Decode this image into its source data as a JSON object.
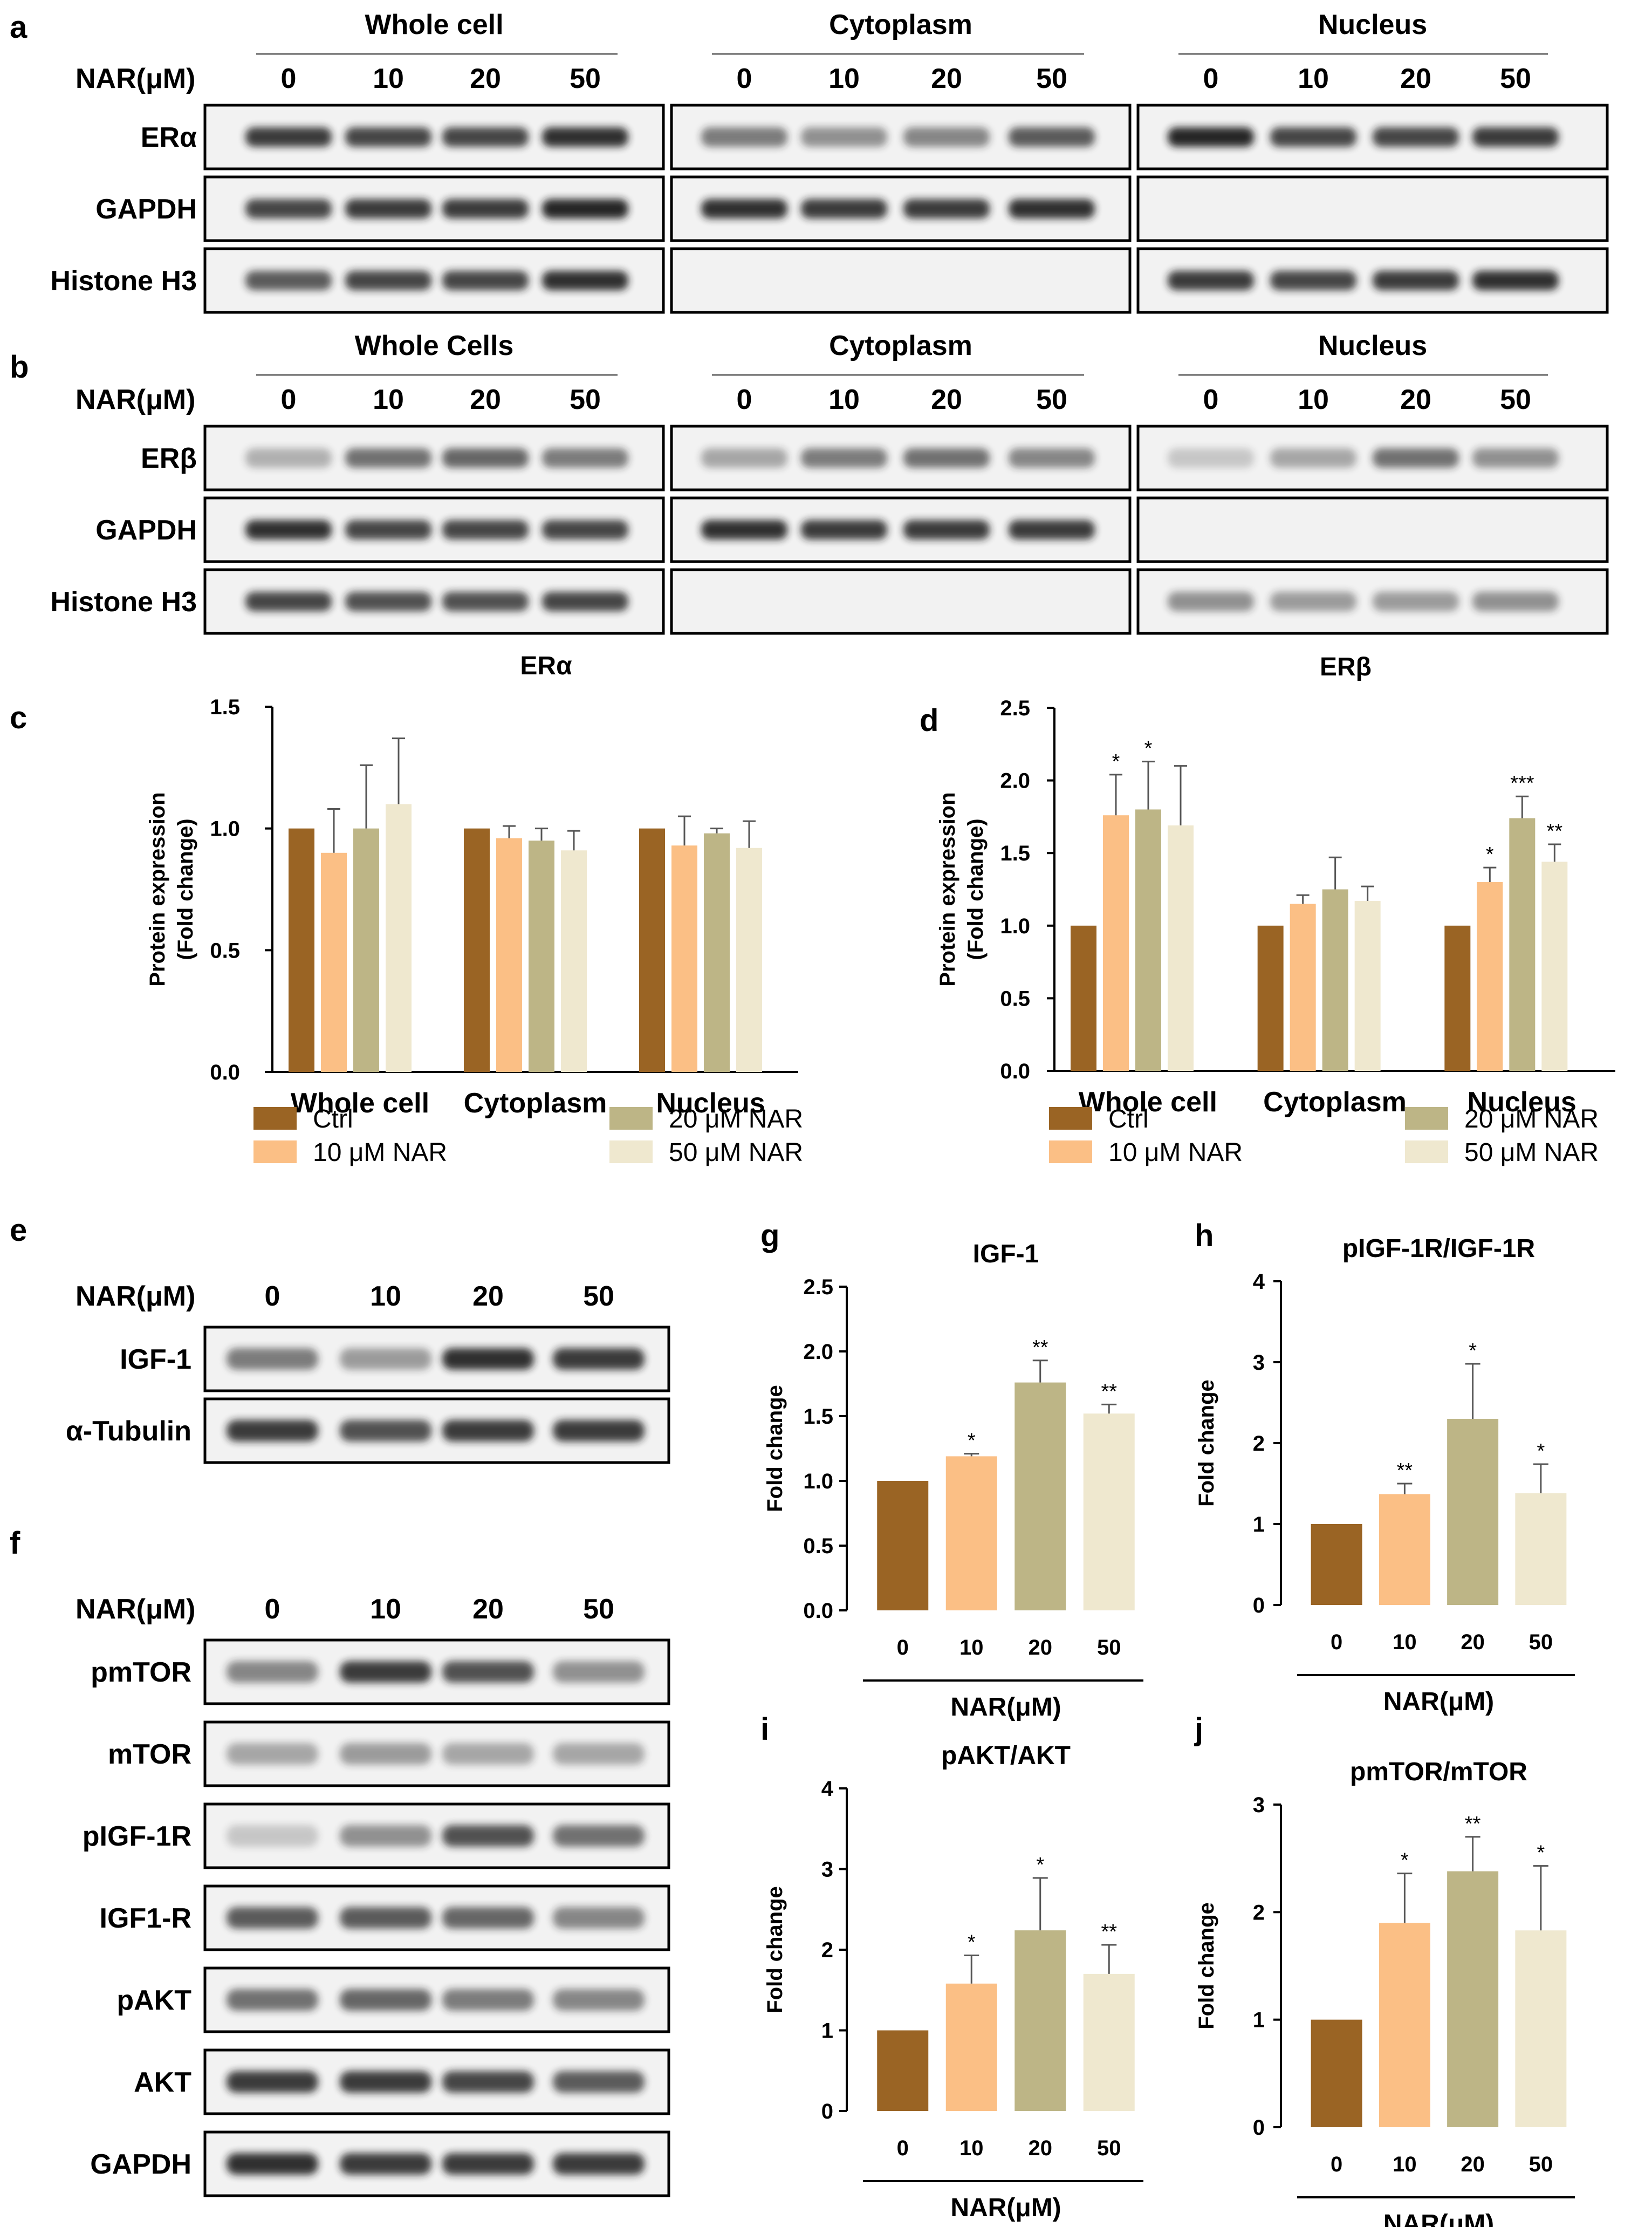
{
  "panel_letters": [
    "a",
    "b",
    "c",
    "d",
    "e",
    "f",
    "g",
    "h",
    "i",
    "j"
  ],
  "colors": {
    "ctrl": "#9a6424",
    "nar10": "#fbbf85",
    "nar20": "#bdb586",
    "nar50": "#efe8cf",
    "band": "#1e1e1e",
    "blot_bg": "#f2f2f2"
  },
  "blots": {
    "a": {
      "dose_label": "NAR(μM)",
      "groups": [
        {
          "title": "Whole cell",
          "doses": [
            "0",
            "10",
            "20",
            "50"
          ]
        },
        {
          "title": "Cytoplasm",
          "doses": [
            "0",
            "10",
            "20",
            "50"
          ]
        },
        {
          "title": "Nucleus",
          "doses": [
            "0",
            "10",
            "20",
            "50"
          ]
        }
      ],
      "rows": [
        {
          "label": "ERα",
          "present": [
            true,
            true,
            true
          ],
          "intensity": [
            [
              0.85,
              0.8,
              0.8,
              0.9
            ],
            [
              0.55,
              0.45,
              0.5,
              0.7
            ],
            [
              0.95,
              0.8,
              0.8,
              0.85
            ]
          ]
        },
        {
          "label": "GAPDH",
          "present": [
            true,
            true,
            false
          ],
          "intensity": [
            [
              0.8,
              0.85,
              0.85,
              0.95
            ],
            [
              0.9,
              0.85,
              0.85,
              0.9
            ],
            [
              0,
              0,
              0,
              0
            ]
          ]
        },
        {
          "label": "Histone H3",
          "present": [
            true,
            false,
            true
          ],
          "intensity": [
            [
              0.7,
              0.8,
              0.8,
              0.9
            ],
            [
              0,
              0,
              0,
              0
            ],
            [
              0.85,
              0.8,
              0.85,
              0.9
            ]
          ]
        }
      ]
    },
    "b": {
      "dose_label": "NAR(μM)",
      "groups": [
        {
          "title": "Whole Cells",
          "doses": [
            "0",
            "10",
            "20",
            "50"
          ]
        },
        {
          "title": "Cytoplasm",
          "doses": [
            "0",
            "10",
            "20",
            "50"
          ]
        },
        {
          "title": "Nucleus",
          "doses": [
            "0",
            "10",
            "20",
            "50"
          ]
        }
      ],
      "rows": [
        {
          "label": "ERβ",
          "present": [
            true,
            true,
            true
          ],
          "intensity": [
            [
              0.3,
              0.6,
              0.65,
              0.55
            ],
            [
              0.35,
              0.55,
              0.6,
              0.5
            ],
            [
              0.2,
              0.35,
              0.6,
              0.45
            ]
          ]
        },
        {
          "label": "GAPDH",
          "present": [
            true,
            true,
            false
          ],
          "intensity": [
            [
              0.9,
              0.8,
              0.8,
              0.8
            ],
            [
              0.9,
              0.85,
              0.85,
              0.85
            ],
            [
              0,
              0,
              0,
              0
            ]
          ]
        },
        {
          "label": "Histone H3",
          "present": [
            true,
            false,
            true
          ],
          "intensity": [
            [
              0.8,
              0.75,
              0.75,
              0.8
            ],
            [
              0,
              0,
              0,
              0
            ],
            [
              0.45,
              0.4,
              0.4,
              0.45
            ]
          ]
        }
      ]
    },
    "e": {
      "dose_label": "NAR(μM)",
      "doses": [
        "0",
        "10",
        "20",
        "50"
      ],
      "rows": [
        {
          "label": "IGF-1",
          "intensity": [
            0.55,
            0.4,
            0.9,
            0.85
          ]
        },
        {
          "label": "α-Tubulin",
          "intensity": [
            0.85,
            0.75,
            0.85,
            0.85
          ]
        }
      ]
    },
    "f": {
      "dose_label": "NAR(μM)",
      "doses": [
        "0",
        "10",
        "20",
        "50"
      ],
      "rows": [
        {
          "label": "pmTOR",
          "intensity": [
            0.5,
            0.85,
            0.75,
            0.45
          ]
        },
        {
          "label": "mTOR",
          "intensity": [
            0.35,
            0.4,
            0.35,
            0.35
          ]
        },
        {
          "label": "pIGF-1R",
          "intensity": [
            0.2,
            0.45,
            0.75,
            0.6
          ]
        },
        {
          "label": "IGF1-R",
          "intensity": [
            0.7,
            0.7,
            0.65,
            0.5
          ]
        },
        {
          "label": "pAKT",
          "intensity": [
            0.6,
            0.65,
            0.55,
            0.5
          ]
        },
        {
          "label": "AKT",
          "intensity": [
            0.85,
            0.85,
            0.8,
            0.7
          ]
        },
        {
          "label": "GAPDH",
          "intensity": [
            0.9,
            0.85,
            0.85,
            0.85
          ]
        }
      ]
    }
  },
  "chart_data": [
    {
      "panel": "c",
      "type": "bar",
      "title": "ERα",
      "ylabel": "Protein expression\n(Fold change)",
      "ylim": [
        0,
        1.5
      ],
      "yticks": [
        "0.0",
        "0.5",
        "1.0",
        "1.5"
      ],
      "categories": [
        "Whole cell",
        "Cytoplasm",
        "Nucleus"
      ],
      "series": [
        {
          "name": "Ctrl",
          "values": [
            1.0,
            1.0,
            1.0
          ],
          "errors": [
            0,
            0,
            0
          ],
          "sig": [
            "",
            "",
            ""
          ]
        },
        {
          "name": "10 μM NAR",
          "values": [
            0.9,
            0.96,
            0.93
          ],
          "errors": [
            0.18,
            0.05,
            0.12
          ],
          "sig": [
            "",
            "",
            ""
          ]
        },
        {
          "name": "20 μM NAR",
          "values": [
            1.0,
            0.95,
            0.98
          ],
          "errors": [
            0.26,
            0.05,
            0.02
          ],
          "sig": [
            "",
            "",
            ""
          ]
        },
        {
          "name": "50 μM NAR",
          "values": [
            1.1,
            0.91,
            0.92
          ],
          "errors": [
            0.27,
            0.08,
            0.11
          ],
          "sig": [
            "",
            "",
            ""
          ]
        }
      ]
    },
    {
      "panel": "d",
      "type": "bar",
      "title": "ERβ",
      "ylabel": "Protein expression\n(Fold change)",
      "ylim": [
        0,
        2.5
      ],
      "yticks": [
        "0.0",
        "0.5",
        "1.0",
        "1.5",
        "2.0",
        "2.5"
      ],
      "categories": [
        "Whole cell",
        "Cytoplasm",
        "Nucleus"
      ],
      "series": [
        {
          "name": "Ctrl",
          "values": [
            1.0,
            1.0,
            1.0
          ],
          "errors": [
            0,
            0,
            0
          ],
          "sig": [
            "",
            "",
            ""
          ]
        },
        {
          "name": "10 μM NAR",
          "values": [
            1.76,
            1.15,
            1.3
          ],
          "errors": [
            0.28,
            0.06,
            0.1
          ],
          "sig": [
            "*",
            "",
            "*"
          ]
        },
        {
          "name": "20 μM NAR",
          "values": [
            1.8,
            1.25,
            1.74
          ],
          "errors": [
            0.33,
            0.22,
            0.15
          ],
          "sig": [
            "*",
            "",
            "***"
          ]
        },
        {
          "name": "50 μM NAR",
          "values": [
            1.69,
            1.17,
            1.44
          ],
          "errors": [
            0.41,
            0.1,
            0.12
          ],
          "sig": [
            "",
            "",
            "**"
          ]
        }
      ]
    },
    {
      "panel": "g",
      "type": "bar",
      "title": "IGF-1",
      "ylabel": "Fold change",
      "xlabel": "NAR(μM)",
      "ylim": [
        0,
        2.5
      ],
      "yticks": [
        "0.0",
        "0.5",
        "1.0",
        "1.5",
        "2.0",
        "2.5"
      ],
      "categories": [
        "0",
        "10",
        "20",
        "50"
      ],
      "values": [
        1.0,
        1.19,
        1.76,
        1.52
      ],
      "errors": [
        0,
        0.02,
        0.17,
        0.07
      ],
      "sig": [
        "",
        "*",
        "**",
        "**"
      ]
    },
    {
      "panel": "h",
      "type": "bar",
      "title": "pIGF-1R/IGF-1R",
      "ylabel": "Fold change",
      "xlabel": "NAR(μM)",
      "ylim": [
        0,
        4
      ],
      "yticks": [
        "0",
        "1",
        "2",
        "3",
        "4"
      ],
      "categories": [
        "0",
        "10",
        "20",
        "50"
      ],
      "values": [
        1.0,
        1.37,
        2.3,
        1.38
      ],
      "errors": [
        0,
        0.13,
        0.68,
        0.36
      ],
      "sig": [
        "",
        "**",
        "*",
        "*"
      ]
    },
    {
      "panel": "i",
      "type": "bar",
      "title": "pAKT/AKT",
      "ylabel": "Fold change",
      "xlabel": "NAR(μM)",
      "ylim": [
        0,
        4
      ],
      "yticks": [
        "0",
        "1",
        "2",
        "3",
        "4"
      ],
      "categories": [
        "0",
        "10",
        "20",
        "50"
      ],
      "values": [
        1.0,
        1.58,
        2.24,
        1.7
      ],
      "errors": [
        0,
        0.35,
        0.65,
        0.36
      ],
      "sig": [
        "",
        "*",
        "*",
        "**"
      ]
    },
    {
      "panel": "j",
      "type": "bar",
      "title": "pmTOR/mTOR",
      "ylabel": "Fold change",
      "xlabel": "NAR(μM)",
      "ylim": [
        0,
        3
      ],
      "yticks": [
        "0",
        "1",
        "2",
        "3"
      ],
      "categories": [
        "0",
        "10",
        "20",
        "50"
      ],
      "values": [
        1.0,
        1.9,
        2.38,
        1.83
      ],
      "errors": [
        0,
        0.46,
        0.32,
        0.6
      ],
      "sig": [
        "",
        "*",
        "**",
        "*"
      ]
    }
  ]
}
